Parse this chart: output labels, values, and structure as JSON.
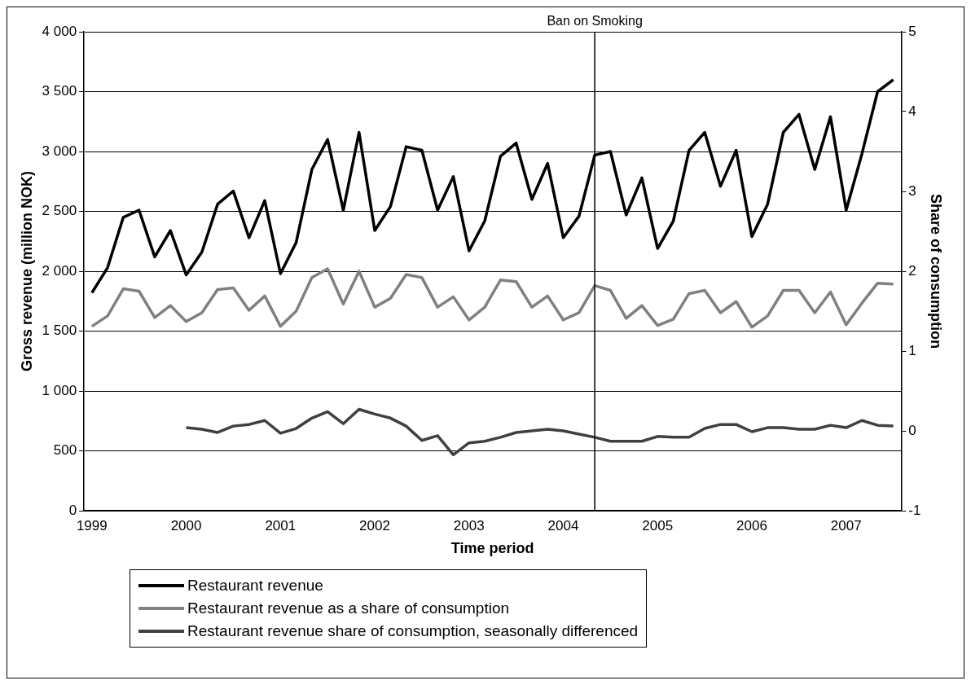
{
  "chart_data": {
    "type": "line",
    "xlabel": "Time period",
    "ylabel": "Gross revenue (million NOK)",
    "y2label": "Share of consumption",
    "x": [
      "1999-01",
      "1999-03",
      "1999-05",
      "1999-07",
      "1999-09",
      "1999-11",
      "2000-01",
      "2000-03",
      "2000-05",
      "2000-07",
      "2000-09",
      "2000-11",
      "2001-01",
      "2001-03",
      "2001-05",
      "2001-07",
      "2001-09",
      "2001-11",
      "2002-01",
      "2002-03",
      "2002-05",
      "2002-07",
      "2002-09",
      "2002-11",
      "2003-01",
      "2003-03",
      "2003-05",
      "2003-07",
      "2003-09",
      "2003-11",
      "2004-01",
      "2004-03",
      "2004-05",
      "2004-07",
      "2004-09",
      "2004-11",
      "2005-01",
      "2005-03",
      "2005-05",
      "2005-07",
      "2005-09",
      "2005-11",
      "2006-01",
      "2006-03",
      "2006-05",
      "2006-07",
      "2006-09",
      "2006-11",
      "2007-01",
      "2007-03",
      "2007-05",
      "2007-07"
    ],
    "series": [
      {
        "name": "Restaurant revenue",
        "color": "#000000",
        "values": [
          1820,
          2030,
          2450,
          2510,
          2120,
          2340,
          1970,
          2160,
          2560,
          2670,
          2280,
          2590,
          1980,
          2240,
          2850,
          3100,
          2510,
          3160,
          2340,
          2540,
          3040,
          3010,
          2510,
          2790,
          2170,
          2420,
          2960,
          3070,
          2600,
          2900,
          2280,
          2460,
          2970,
          3000,
          2470,
          2780,
          2190,
          2420,
          3010,
          3160,
          2710,
          3010,
          2290,
          2560,
          3160,
          3310,
          2850,
          3290,
          2510,
          2980,
          3500,
          3600
        ]
      },
      {
        "name": "Restaurant revenue as a share of consumption",
        "color": "#808080",
        "axis": "y2",
        "values": [
          1.31,
          1.44,
          1.78,
          1.75,
          1.42,
          1.57,
          1.37,
          1.48,
          1.77,
          1.79,
          1.51,
          1.69,
          1.31,
          1.5,
          1.92,
          2.03,
          1.59,
          2.0,
          1.55,
          1.66,
          1.96,
          1.92,
          1.55,
          1.68,
          1.39,
          1.55,
          1.89,
          1.87,
          1.55,
          1.69,
          1.39,
          1.48,
          1.82,
          1.76,
          1.41,
          1.57,
          1.32,
          1.4,
          1.72,
          1.76,
          1.48,
          1.62,
          1.3,
          1.44,
          1.76,
          1.76,
          1.48,
          1.74,
          1.33,
          1.6,
          1.85,
          1.84
        ]
      },
      {
        "name": "Restaurant revenue share of consumption, seasonally differenced",
        "color": "#404040",
        "axis": "y2",
        "values": [
          null,
          null,
          null,
          null,
          null,
          null,
          0.04,
          0.02,
          -0.02,
          0.06,
          0.08,
          0.13,
          -0.03,
          0.03,
          0.16,
          0.24,
          0.09,
          0.27,
          0.21,
          0.16,
          0.06,
          -0.12,
          -0.06,
          -0.3,
          -0.15,
          -0.13,
          -0.08,
          -0.02,
          0.0,
          0.02,
          0.0,
          -0.04,
          -0.08,
          -0.13,
          -0.13,
          -0.13,
          -0.07,
          -0.08,
          -0.08,
          0.03,
          0.08,
          0.08,
          -0.01,
          0.04,
          0.04,
          0.02,
          0.02,
          0.07,
          0.04,
          0.13,
          0.07,
          0.06
        ]
      }
    ],
    "xlim": [
      "1998-12",
      "2007-08"
    ],
    "xticks": [
      "1999",
      "2000",
      "2001",
      "2002",
      "2003",
      "2004",
      "2005",
      "2006",
      "2007"
    ],
    "ylim": [
      0,
      4000
    ],
    "yticks": [
      0,
      500,
      {
        "value": 1000,
        "label": "1 000"
      },
      {
        "value": 1500,
        "label": "1 500"
      },
      {
        "value": 2000,
        "label": "2 000"
      },
      {
        "value": 2500,
        "label": "2 500"
      },
      {
        "value": 3000,
        "label": "3 000"
      },
      {
        "value": 3500,
        "label": "3 500"
      },
      {
        "value": 4000,
        "label": "4 000"
      }
    ],
    "y2lim": [
      -1,
      5
    ],
    "y2ticks": [
      -1,
      0,
      1,
      2,
      3,
      4,
      5
    ],
    "ref_lines": [
      {
        "axis": "x",
        "value": "2004-05",
        "label": "Ban on Smoking",
        "color": "#000000"
      }
    ],
    "grid": "y",
    "legend": "bottom",
    "marker": "none"
  }
}
